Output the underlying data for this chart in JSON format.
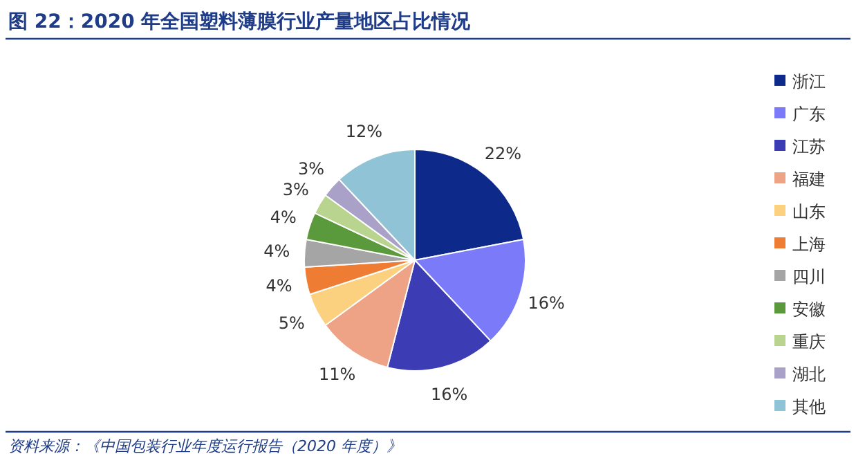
{
  "chart_data": {
    "type": "pie",
    "title": "图 22：2020 年全国塑料薄膜行业产量地区占比情况",
    "annotations": [
      "资料来源：《中国包装行业年度运行报告（2020 年度）》"
    ],
    "categories": [
      "浙江",
      "广东",
      "江苏",
      "福建",
      "山东",
      "上海",
      "四川",
      "安徽",
      "重庆",
      "湖北",
      "其他"
    ],
    "values": [
      22,
      16,
      16,
      11,
      5,
      4,
      4,
      4,
      3,
      3,
      12
    ],
    "value_labels": [
      "22%",
      "16%",
      "16%",
      "11%",
      "5%",
      "4%",
      "4%",
      "4%",
      "3%",
      "3%",
      "12%"
    ],
    "colors": [
      "#0d2a8a",
      "#7b7bfa",
      "#3c3cb4",
      "#eea387",
      "#fbd07f",
      "#ee7d33",
      "#a5a5a5",
      "#5b9a3c",
      "#b9d48e",
      "#a9a1c8",
      "#8fc3d5"
    ],
    "legend": "right"
  }
}
